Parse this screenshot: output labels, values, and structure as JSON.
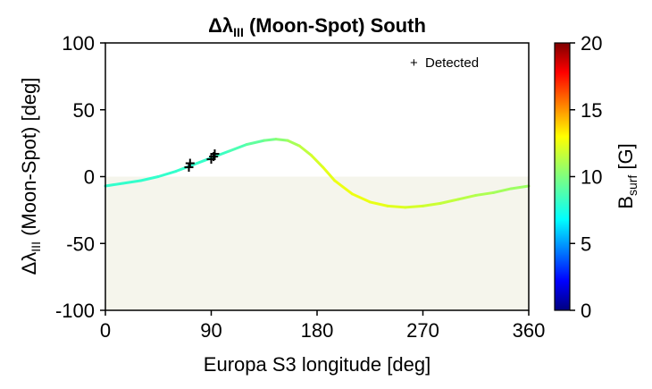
{
  "chart_data": {
    "type": "line",
    "title": {
      "prefix": "Δλ",
      "subscript": "III",
      "suffix": " (Moon-Spot) South"
    },
    "xlabel": "Europa S3 longitude [deg]",
    "ylabel": {
      "prefix": "Δλ",
      "subscript": "III",
      "suffix": " (Moon-Spot) [deg]"
    },
    "xlim": [
      0,
      360
    ],
    "ylim": [
      -100,
      100
    ],
    "x_ticks": [
      "0",
      "90",
      "180",
      "270",
      "360"
    ],
    "y_ticks": [
      "100",
      "50",
      "0",
      "-50",
      "-100"
    ],
    "grid": false,
    "shaded_region": {
      "y_from": -100,
      "y_to": 0,
      "color": "#f5f5ec"
    },
    "legend": {
      "position": "top-right",
      "entries": [
        {
          "marker": "+",
          "label": "Detected"
        }
      ]
    },
    "colorbar": {
      "label_main": "B",
      "label_sub": "surf",
      "label_suffix": " [G]",
      "range": [
        0,
        20
      ],
      "ticks": [
        "20",
        "15",
        "10",
        "5",
        "0"
      ],
      "colormap": "jet"
    },
    "series": [
      {
        "x": [
          0,
          15,
          30,
          45,
          60,
          75,
          90,
          105,
          120,
          135,
          145,
          155,
          165,
          175,
          185,
          195,
          210,
          225,
          240,
          255,
          270,
          285,
          300,
          315,
          330,
          345,
          360
        ],
        "y": [
          -7,
          -5,
          -3,
          0,
          4,
          9,
          14,
          19,
          24,
          27,
          28,
          27,
          23,
          16,
          7,
          -3,
          -13,
          -19,
          -22,
          -23,
          -22,
          -20,
          -17,
          -14,
          -12,
          -9,
          -7
        ],
        "color_value": [
          8.5,
          8.5,
          8.5,
          8.5,
          8.5,
          8.5,
          8.6,
          8.8,
          9.2,
          9.6,
          10.0,
          10.5,
          11.0,
          11.5,
          11.9,
          12.1,
          12.2,
          12.1,
          12.0,
          11.8,
          11.6,
          11.4,
          11.2,
          11.0,
          10.8,
          10.6,
          10.5
        ]
      }
    ],
    "detected_points": [
      {
        "x": 71,
        "y": 7
      },
      {
        "x": 72,
        "y": 10
      },
      {
        "x": 90,
        "y": 13
      },
      {
        "x": 92,
        "y": 15
      },
      {
        "x": 93,
        "y": 17
      }
    ]
  }
}
